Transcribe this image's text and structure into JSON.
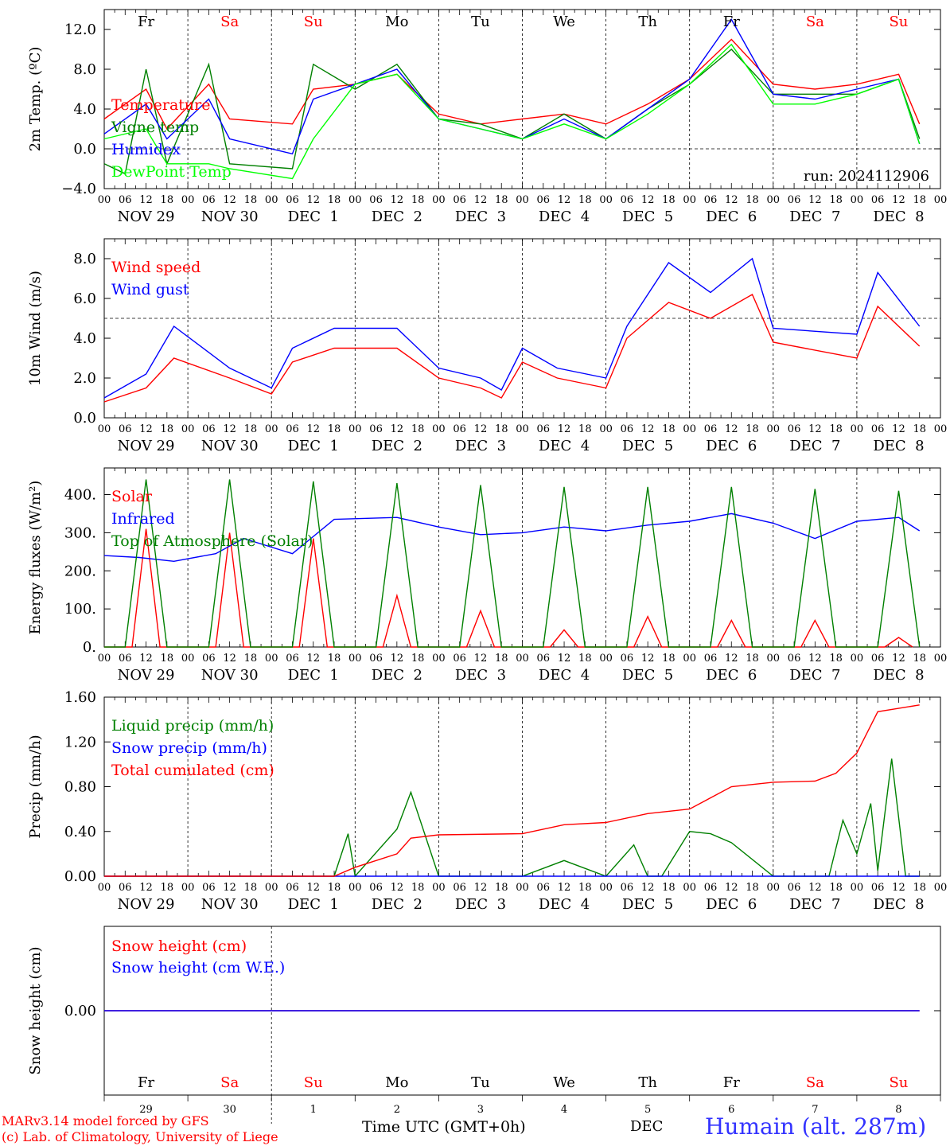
{
  "x_hour_labels": [
    "00",
    "06",
    "12",
    "18"
  ],
  "date_labels": [
    "NOV 29",
    "NOV 30",
    "DEC  1",
    "DEC  2",
    "DEC  3",
    "DEC  4",
    "DEC  5",
    "DEC  6",
    "DEC  7",
    "DEC  8"
  ],
  "day_abbrev": [
    {
      "label": "Fr",
      "color": "#000000"
    },
    {
      "label": "Sa",
      "color": "#ff0000"
    },
    {
      "label": "Su",
      "color": "#ff0000"
    },
    {
      "label": "Mo",
      "color": "#000000"
    },
    {
      "label": "Tu",
      "color": "#000000"
    },
    {
      "label": "We",
      "color": "#000000"
    },
    {
      "label": "Th",
      "color": "#000000"
    },
    {
      "label": "Fr",
      "color": "#000000"
    },
    {
      "label": "Sa",
      "color": "#ff0000"
    },
    {
      "label": "Su",
      "color": "#ff0000"
    }
  ],
  "day_numbers": [
    "29",
    "30",
    "1",
    "2",
    "3",
    "4",
    "5",
    "6",
    "7",
    "8"
  ],
  "run_label": "run: 2024112906",
  "footer": {
    "model": "MARv3.14 model forced by GFS",
    "credit": "(c) Lab. of Climatology, University of Liege",
    "time_axis": "Time UTC (GMT+0h)",
    "month": "DEC",
    "station": "Humain (alt. 287m)"
  },
  "chart_data": [
    {
      "type": "line",
      "ylabel": "2m Temp. (ºC)",
      "ylim": [
        -4,
        14
      ],
      "yticks": [
        "−4.0",
        "0.0",
        "4.0",
        "8.0",
        "12.0"
      ],
      "ytick_values": [
        -4,
        0,
        4,
        8,
        12
      ],
      "ref_line": 0,
      "series": [
        {
          "name": "Temperature",
          "color": "#ff0000",
          "x": [
            0,
            12,
            18,
            30,
            36,
            54,
            60,
            72,
            84,
            96,
            108,
            120,
            132,
            144,
            156,
            168,
            180,
            192,
            204,
            216,
            228,
            234
          ],
          "values": [
            3,
            6,
            2,
            6.5,
            3,
            2.5,
            6,
            6.5,
            7.5,
            3.5,
            2.5,
            3,
            3.5,
            2.5,
            4.5,
            7,
            11,
            6.5,
            6,
            6.5,
            7.5,
            2.5
          ]
        },
        {
          "name": "Vigne temp",
          "color": "#008000",
          "x": [
            0,
            6,
            12,
            18,
            30,
            36,
            54,
            60,
            72,
            84,
            96,
            108,
            120,
            132,
            144,
            156,
            168,
            180,
            192,
            204,
            216,
            228,
            234
          ],
          "values": [
            -1.5,
            -2.5,
            8,
            -1.5,
            8.5,
            -1.5,
            -2,
            8.5,
            6,
            8.5,
            3,
            2.5,
            1,
            3.5,
            1,
            4,
            6.5,
            10,
            5.5,
            5.5,
            5.5,
            7,
            1
          ]
        },
        {
          "name": "Humidex",
          "color": "#0000ff",
          "x": [
            0,
            12,
            18,
            30,
            36,
            54,
            60,
            72,
            84,
            96,
            108,
            120,
            132,
            144,
            156,
            168,
            180,
            192,
            204,
            216,
            228,
            234
          ],
          "values": [
            1.5,
            4.5,
            1,
            5,
            1,
            -0.5,
            5,
            6.5,
            8,
            3,
            2,
            1,
            3,
            1,
            4,
            7,
            13,
            5.5,
            5,
            6,
            7,
            0.5
          ]
        },
        {
          "name": "DewPoint Temp",
          "color": "#00ff00",
          "x": [
            0,
            12,
            18,
            30,
            36,
            54,
            60,
            72,
            84,
            96,
            108,
            120,
            132,
            144,
            156,
            168,
            180,
            192,
            204,
            216,
            228,
            234
          ],
          "values": [
            1,
            2,
            -1.5,
            -1.5,
            -2,
            -3,
            1,
            6.5,
            7.5,
            3,
            2,
            1,
            2.5,
            1,
            3.5,
            6.5,
            10.5,
            4.5,
            4.5,
            5.5,
            7,
            0.5
          ]
        }
      ]
    },
    {
      "type": "line",
      "ylabel": "10m Wind (m/s)",
      "ylim": [
        0,
        9
      ],
      "yticks": [
        "0.0",
        "2.0",
        "4.0",
        "6.0",
        "8.0"
      ],
      "ytick_values": [
        0,
        2,
        4,
        6,
        8
      ],
      "ref_line": 5,
      "series": [
        {
          "name": "Wind speed",
          "color": "#ff0000",
          "x": [
            0,
            12,
            20,
            36,
            48,
            54,
            66,
            84,
            96,
            108,
            114,
            120,
            130,
            144,
            150,
            162,
            174,
            186,
            192,
            216,
            222,
            234
          ],
          "values": [
            0.8,
            1.5,
            3,
            2,
            1.2,
            2.8,
            3.5,
            3.5,
            2,
            1.5,
            1,
            2.8,
            2,
            1.5,
            4,
            5.8,
            5,
            6.2,
            3.8,
            3,
            5.6,
            3.6
          ]
        },
        {
          "name": "Wind gust",
          "color": "#0000ff",
          "x": [
            0,
            12,
            20,
            36,
            48,
            54,
            66,
            84,
            96,
            108,
            114,
            120,
            130,
            144,
            150,
            162,
            174,
            186,
            192,
            216,
            222,
            234
          ],
          "values": [
            1,
            2.2,
            4.6,
            2.5,
            1.5,
            3.5,
            4.5,
            4.5,
            2.5,
            2,
            1.4,
            3.5,
            2.5,
            2,
            4.6,
            7.8,
            6.3,
            8,
            4.5,
            4.2,
            7.3,
            4.6
          ]
        }
      ]
    },
    {
      "type": "line",
      "ylabel": "Energy fluxes (W/m²)",
      "ylim": [
        0,
        470
      ],
      "yticks": [
        "0.",
        "100.",
        "200.",
        "300.",
        "400."
      ],
      "ytick_values": [
        0,
        100,
        200,
        300,
        400
      ],
      "series": [
        {
          "name": "Solar",
          "color": "#ff0000",
          "x": [
            0,
            8,
            12,
            16,
            24,
            32,
            36,
            40,
            48,
            56,
            60,
            64,
            72,
            80,
            84,
            88,
            96,
            104,
            108,
            112,
            120,
            128,
            132,
            136,
            144,
            152,
            156,
            160,
            168,
            176,
            180,
            184,
            192,
            200,
            204,
            208,
            216,
            224,
            228,
            232
          ],
          "values": [
            0,
            0,
            310,
            0,
            0,
            0,
            300,
            0,
            0,
            0,
            285,
            0,
            0,
            0,
            135,
            0,
            0,
            0,
            95,
            0,
            0,
            0,
            45,
            0,
            0,
            0,
            80,
            0,
            0,
            0,
            70,
            0,
            0,
            0,
            70,
            0,
            0,
            0,
            25,
            0
          ]
        },
        {
          "name": "Infrared",
          "color": "#0000ff",
          "x": [
            0,
            10,
            20,
            32,
            40,
            54,
            66,
            84,
            96,
            108,
            120,
            132,
            144,
            156,
            168,
            180,
            192,
            204,
            216,
            228,
            234
          ],
          "values": [
            240,
            235,
            225,
            245,
            285,
            245,
            335,
            340,
            315,
            295,
            300,
            315,
            305,
            320,
            330,
            350,
            325,
            285,
            330,
            340,
            305
          ]
        },
        {
          "name": "Top of Atmosphere (Solar)",
          "color": "#008000",
          "x": [
            0,
            6,
            12,
            18,
            24,
            30,
            36,
            42,
            48,
            54,
            60,
            66,
            72,
            78,
            84,
            90,
            96,
            102,
            108,
            114,
            120,
            126,
            132,
            138,
            144,
            150,
            156,
            162,
            168,
            174,
            180,
            186,
            192,
            198,
            204,
            210,
            216,
            222,
            228,
            234
          ],
          "values": [
            0,
            0,
            440,
            0,
            0,
            0,
            440,
            0,
            0,
            0,
            435,
            0,
            0,
            0,
            430,
            0,
            0,
            0,
            425,
            0,
            0,
            0,
            420,
            0,
            0,
            0,
            420,
            0,
            0,
            0,
            420,
            0,
            0,
            0,
            415,
            0,
            0,
            0,
            410,
            0
          ]
        }
      ]
    },
    {
      "type": "line",
      "ylabel": "Precip (mm/h)",
      "ylim": [
        0,
        1.6
      ],
      "yticks": [
        "0.00",
        "0.40",
        "0.80",
        "1.20",
        "1.60"
      ],
      "ytick_values": [
        0,
        0.4,
        0.8,
        1.2,
        1.6
      ],
      "series": [
        {
          "name": "Liquid precip (mm/h)",
          "color": "#008000",
          "x": [
            0,
            66,
            70,
            72,
            84,
            88,
            96,
            120,
            132,
            144,
            152,
            156,
            160,
            168,
            174,
            180,
            192,
            208,
            212,
            216,
            220,
            222,
            226,
            230,
            234
          ],
          "values": [
            0,
            0,
            0.38,
            0,
            0.42,
            0.75,
            0,
            0,
            0.14,
            0,
            0.28,
            0,
            0,
            0.4,
            0.38,
            0.3,
            0,
            0,
            0.5,
            0.2,
            0.65,
            0.05,
            1.05,
            0,
            0
          ]
        },
        {
          "name": "Snow precip (mm/h)",
          "color": "#0000ff",
          "x": [
            0,
            234
          ],
          "values": [
            0,
            0
          ]
        },
        {
          "name": "Total cumulated (cm)",
          "color": "#ff0000",
          "x": [
            0,
            66,
            72,
            84,
            88,
            96,
            120,
            132,
            144,
            156,
            168,
            180,
            192,
            204,
            210,
            216,
            222,
            234
          ],
          "values": [
            0,
            0,
            0.08,
            0.2,
            0.34,
            0.37,
            0.38,
            0.46,
            0.48,
            0.56,
            0.6,
            0.8,
            0.84,
            0.85,
            0.92,
            1.1,
            1.47,
            1.53
          ]
        }
      ]
    },
    {
      "type": "line",
      "ylabel": "Snow height (cm)",
      "ylim": [
        -1,
        1
      ],
      "yticks": [
        "0.00"
      ],
      "ytick_values": [
        0
      ],
      "series": [
        {
          "name": "Snow height (cm)",
          "color": "#ff0000",
          "x": [
            0,
            234
          ],
          "values": [
            0,
            0
          ]
        },
        {
          "name": "Snow height (cm W.E.)",
          "color": "#0000ff",
          "x": [
            0,
            234
          ],
          "values": [
            0,
            0
          ]
        }
      ]
    }
  ]
}
